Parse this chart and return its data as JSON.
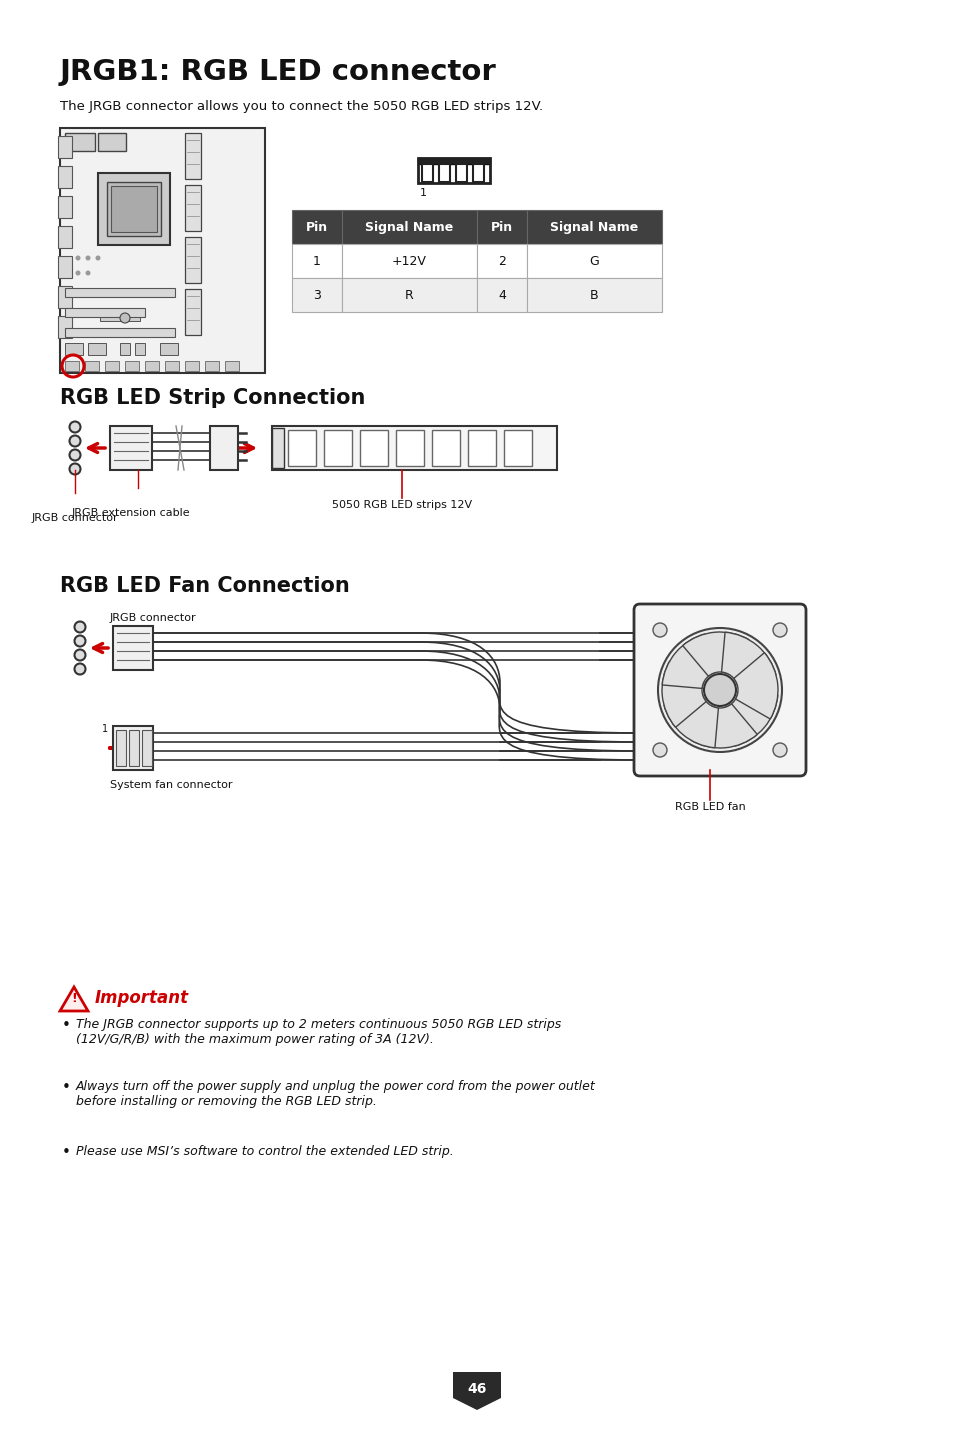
{
  "title": "JRGB1: RGB LED connector",
  "subtitle": "The JRGB connector allows you to connect the 5050 RGB LED strips 12V.",
  "section2": "RGB LED Strip Connection",
  "section3": "RGB LED Fan Connection",
  "table_header": [
    "Pin",
    "Signal Name",
    "Pin",
    "Signal Name"
  ],
  "table_rows": [
    [
      "1",
      "+12V",
      "2",
      "G"
    ],
    [
      "3",
      "R",
      "4",
      "B"
    ]
  ],
  "table_header_bg": "#404040",
  "table_header_fg": "#ffffff",
  "table_row1_bg": "#ffffff",
  "table_row2_bg": "#eeeeee",
  "important_title": "Important",
  "bullet1": "The JRGB connector supports up to 2 meters continuous 5050 RGB LED strips\n(12V/G/R/B) with the maximum power rating of 3A (12V).",
  "bullet2": "Always turn off the power supply and unplug the power cord from the power outlet\nbefore installing or removing the RGB LED strip.",
  "bullet3": "Please use MSI’s software to control the extended LED strip.",
  "page_number": "46",
  "bg_color": "#ffffff",
  "text_color": "#111111",
  "red_color": "#cc0000",
  "header_bg": "#3a3a3a"
}
